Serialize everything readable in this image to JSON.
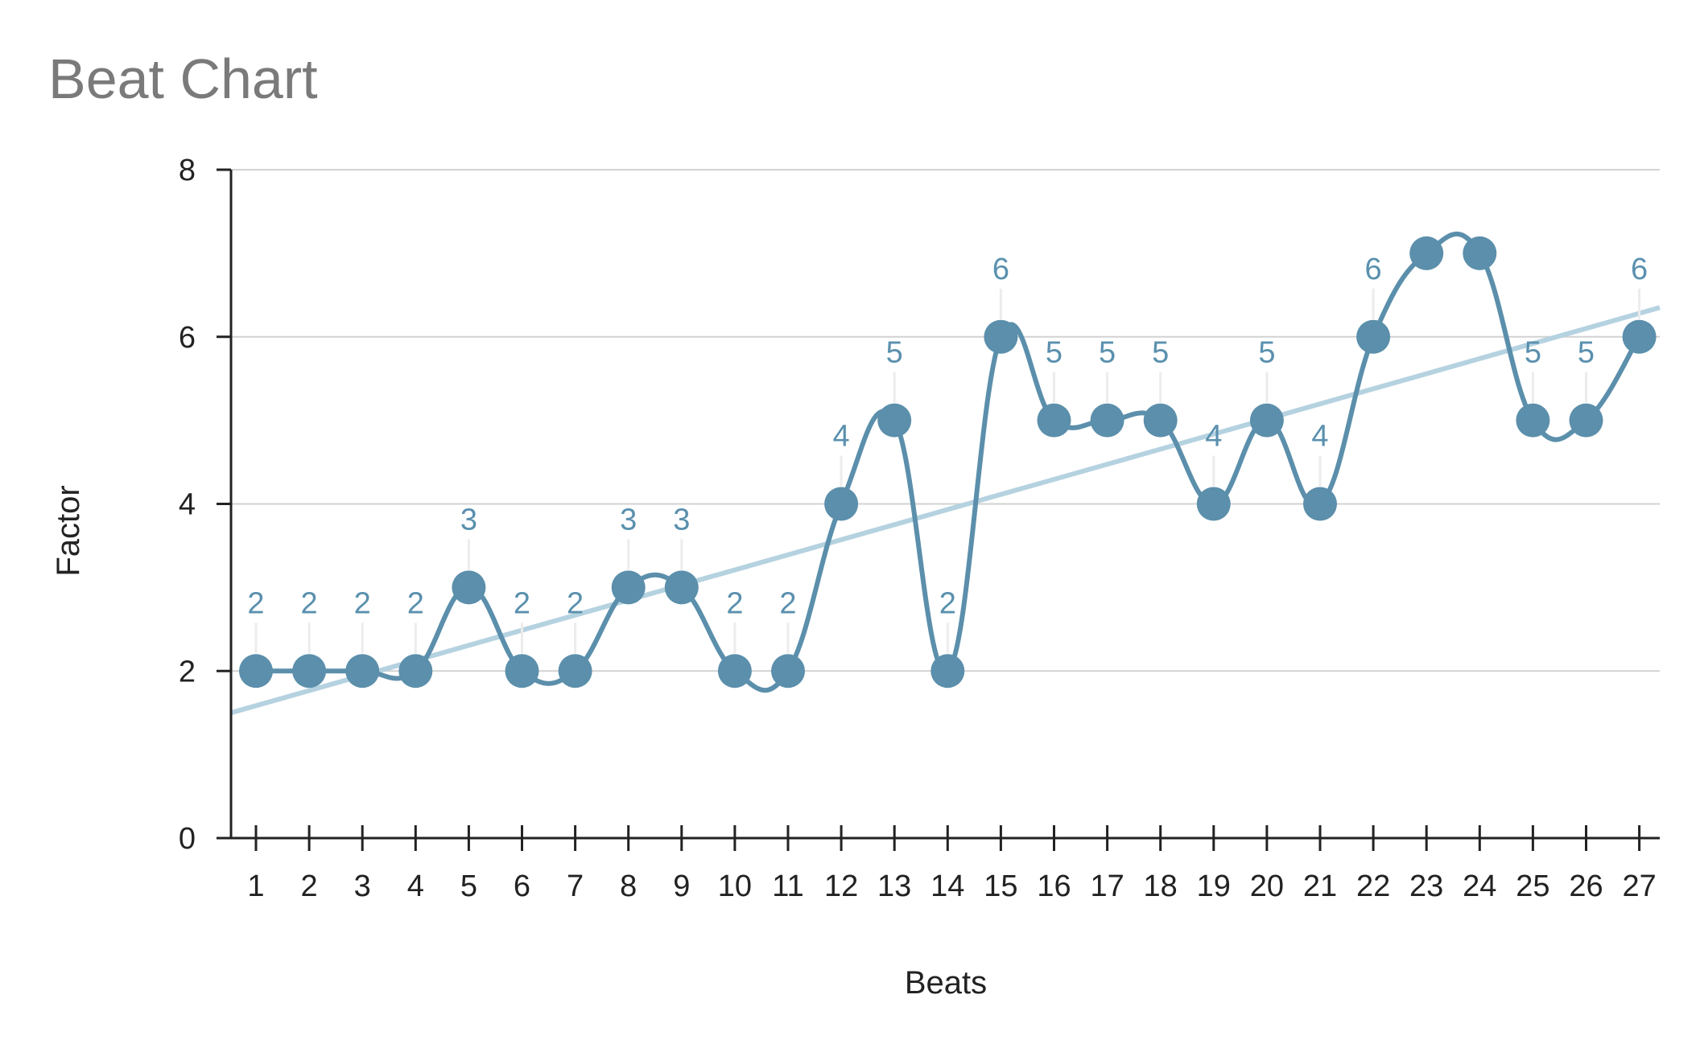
{
  "chart_data": {
    "type": "line",
    "title": "Beat Chart",
    "xlabel": "Beats",
    "ylabel": "Factor",
    "x": [
      1,
      2,
      3,
      4,
      5,
      6,
      7,
      8,
      9,
      10,
      11,
      12,
      13,
      14,
      15,
      16,
      17,
      18,
      19,
      20,
      21,
      22,
      23,
      24,
      25,
      26,
      27
    ],
    "series": [
      {
        "values": [
          2,
          2,
          2,
          2,
          3,
          2,
          2,
          3,
          3,
          2,
          2,
          4,
          5,
          2,
          6,
          5,
          5,
          5,
          4,
          5,
          4,
          6,
          7,
          7,
          5,
          5,
          6
        ],
        "color": "#5b8fab",
        "data_labels": [
          "2",
          "2",
          "2",
          "2",
          "3",
          "2",
          "2",
          "3",
          "3",
          "2",
          "2",
          "4",
          "5",
          "2",
          "6",
          "5",
          "5",
          "5",
          "4",
          "5",
          "4",
          "6",
          "",
          "",
          "5",
          "5",
          "6"
        ]
      }
    ],
    "trendline": {
      "start_value": 1.5,
      "end_value": 6.35,
      "color": "#b5d2e0"
    },
    "ylim": [
      0,
      8
    ],
    "yticks": [
      "0",
      "2",
      "4",
      "6",
      "8"
    ],
    "xticks": [
      "1",
      "2",
      "3",
      "4",
      "5",
      "6",
      "7",
      "8",
      "9",
      "10",
      "11",
      "12",
      "13",
      "14",
      "15",
      "16",
      "17",
      "18",
      "19",
      "20",
      "21",
      "22",
      "23",
      "24",
      "25",
      "26",
      "27"
    ],
    "grid": true,
    "smooth": true
  }
}
